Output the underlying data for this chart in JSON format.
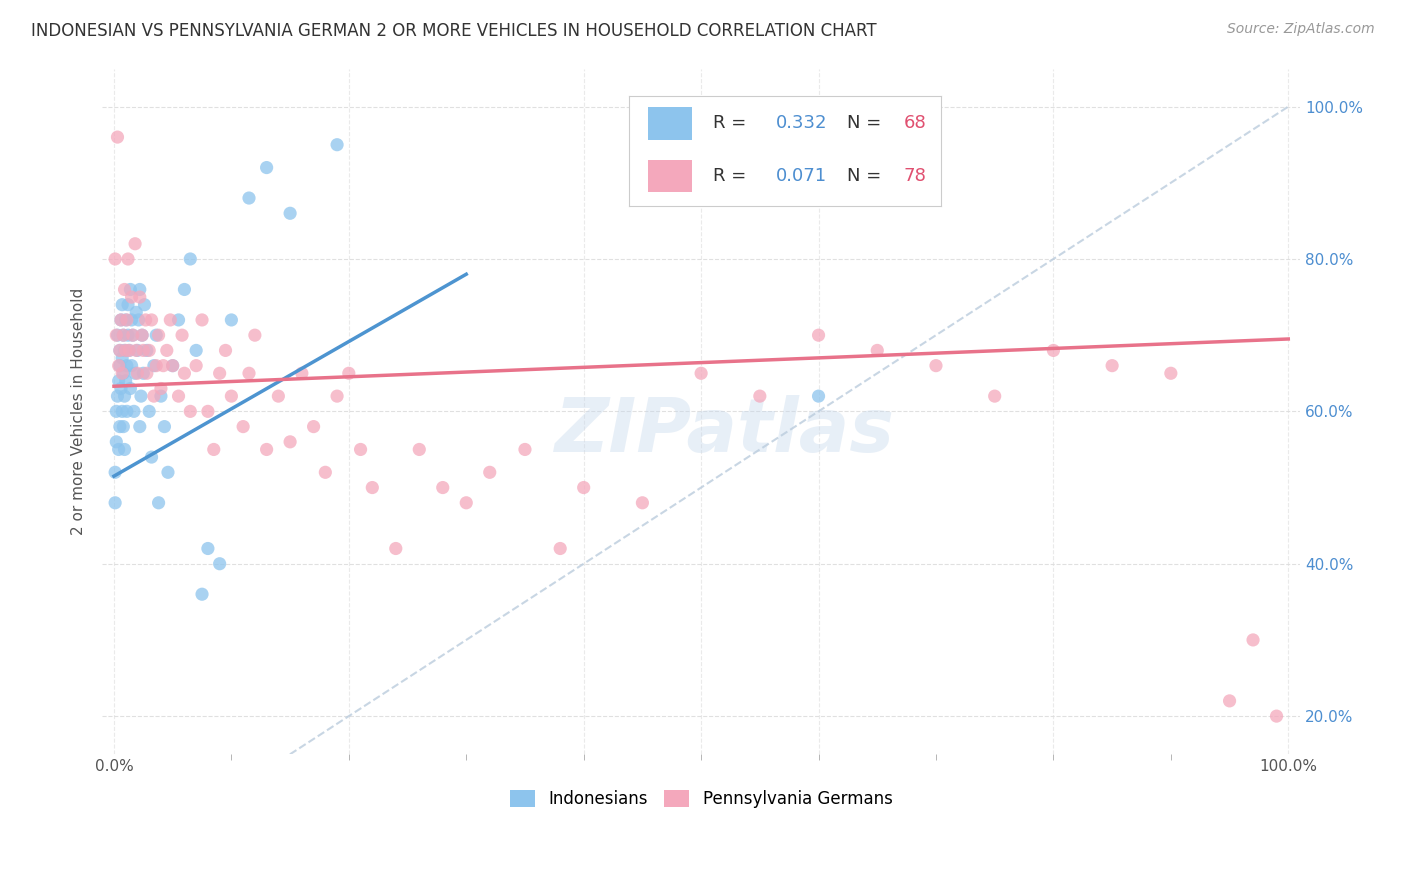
{
  "title": "INDONESIAN VS PENNSYLVANIA GERMAN 2 OR MORE VEHICLES IN HOUSEHOLD CORRELATION CHART",
  "source": "Source: ZipAtlas.com",
  "ylabel": "2 or more Vehicles in Household",
  "watermark": "ZIPatlas",
  "legend_indonesian": "Indonesians",
  "legend_pa_german": "Pennsylvania Germans",
  "R_indonesian": "0.332",
  "N_indonesian": "68",
  "R_pa_german": "0.071",
  "N_pa_german": "78",
  "color_indonesian": "#8DC4ED",
  "color_pa_german": "#F4A8BC",
  "trendline_indonesian": "#4D94D0",
  "trendline_pa_german": "#E8728A",
  "diagonal_color": "#BBCCDD",
  "background_color": "#FFFFFF",
  "grid_color": "#DDDDDD",
  "title_color": "#333333",
  "source_color": "#999999",
  "legend_r_color": "#4D8ED0",
  "legend_n_color": "#E05070",
  "ylim": [
    0.15,
    1.05
  ],
  "yticks": [
    0.2,
    0.4,
    0.6,
    0.8,
    1.0
  ],
  "ytick_labels": [
    "20.0%",
    "40.0%",
    "60.0%",
    "80.0%",
    "100.0%"
  ],
  "xlim": [
    -0.01,
    1.01
  ],
  "xticks": [
    0.0,
    1.0
  ],
  "xtick_labels": [
    "0.0%",
    "100.0%"
  ],
  "indonesian_x": [
    0.001,
    0.001,
    0.002,
    0.002,
    0.003,
    0.003,
    0.004,
    0.004,
    0.005,
    0.005,
    0.005,
    0.006,
    0.006,
    0.007,
    0.007,
    0.007,
    0.008,
    0.008,
    0.008,
    0.009,
    0.009,
    0.009,
    0.01,
    0.01,
    0.011,
    0.011,
    0.012,
    0.012,
    0.013,
    0.014,
    0.014,
    0.015,
    0.015,
    0.016,
    0.017,
    0.018,
    0.019,
    0.02,
    0.021,
    0.022,
    0.022,
    0.023,
    0.024,
    0.025,
    0.026,
    0.028,
    0.03,
    0.032,
    0.034,
    0.036,
    0.038,
    0.04,
    0.043,
    0.046,
    0.05,
    0.055,
    0.06,
    0.065,
    0.07,
    0.075,
    0.08,
    0.09,
    0.1,
    0.115,
    0.13,
    0.15,
    0.19,
    0.6
  ],
  "indonesian_y": [
    0.52,
    0.48,
    0.6,
    0.56,
    0.62,
    0.7,
    0.55,
    0.64,
    0.68,
    0.58,
    0.66,
    0.63,
    0.72,
    0.6,
    0.67,
    0.74,
    0.58,
    0.65,
    0.7,
    0.62,
    0.68,
    0.55,
    0.64,
    0.72,
    0.6,
    0.66,
    0.7,
    0.74,
    0.68,
    0.63,
    0.76,
    0.72,
    0.66,
    0.7,
    0.6,
    0.65,
    0.73,
    0.68,
    0.72,
    0.76,
    0.58,
    0.62,
    0.7,
    0.65,
    0.74,
    0.68,
    0.6,
    0.54,
    0.66,
    0.7,
    0.48,
    0.62,
    0.58,
    0.52,
    0.66,
    0.72,
    0.76,
    0.8,
    0.68,
    0.36,
    0.42,
    0.4,
    0.72,
    0.88,
    0.92,
    0.86,
    0.95,
    0.62
  ],
  "pa_german_x": [
    0.001,
    0.002,
    0.003,
    0.004,
    0.005,
    0.006,
    0.007,
    0.008,
    0.009,
    0.01,
    0.011,
    0.012,
    0.013,
    0.015,
    0.016,
    0.018,
    0.019,
    0.02,
    0.022,
    0.024,
    0.025,
    0.027,
    0.028,
    0.03,
    0.032,
    0.034,
    0.036,
    0.038,
    0.04,
    0.042,
    0.045,
    0.048,
    0.05,
    0.055,
    0.058,
    0.06,
    0.065,
    0.07,
    0.075,
    0.08,
    0.085,
    0.09,
    0.095,
    0.1,
    0.11,
    0.115,
    0.12,
    0.13,
    0.14,
    0.15,
    0.16,
    0.17,
    0.18,
    0.19,
    0.2,
    0.21,
    0.22,
    0.24,
    0.26,
    0.28,
    0.3,
    0.32,
    0.35,
    0.38,
    0.4,
    0.45,
    0.5,
    0.55,
    0.6,
    0.65,
    0.7,
    0.75,
    0.8,
    0.85,
    0.9,
    0.95,
    0.97,
    0.99
  ],
  "pa_german_y": [
    0.8,
    0.7,
    0.96,
    0.66,
    0.68,
    0.72,
    0.65,
    0.7,
    0.76,
    0.68,
    0.72,
    0.8,
    0.68,
    0.75,
    0.7,
    0.82,
    0.68,
    0.65,
    0.75,
    0.7,
    0.68,
    0.72,
    0.65,
    0.68,
    0.72,
    0.62,
    0.66,
    0.7,
    0.63,
    0.66,
    0.68,
    0.72,
    0.66,
    0.62,
    0.7,
    0.65,
    0.6,
    0.66,
    0.72,
    0.6,
    0.55,
    0.65,
    0.68,
    0.62,
    0.58,
    0.65,
    0.7,
    0.55,
    0.62,
    0.56,
    0.65,
    0.58,
    0.52,
    0.62,
    0.65,
    0.55,
    0.5,
    0.42,
    0.55,
    0.5,
    0.48,
    0.52,
    0.55,
    0.42,
    0.5,
    0.48,
    0.65,
    0.62,
    0.7,
    0.68,
    0.66,
    0.62,
    0.68,
    0.66,
    0.65,
    0.22,
    0.3,
    0.2
  ],
  "trendline_indo_x0": 0.0,
  "trendline_indo_y0": 0.515,
  "trendline_indo_x1": 0.3,
  "trendline_indo_y1": 0.78,
  "trendline_pa_x0": 0.0,
  "trendline_pa_y0": 0.633,
  "trendline_pa_x1": 1.0,
  "trendline_pa_y1": 0.695
}
